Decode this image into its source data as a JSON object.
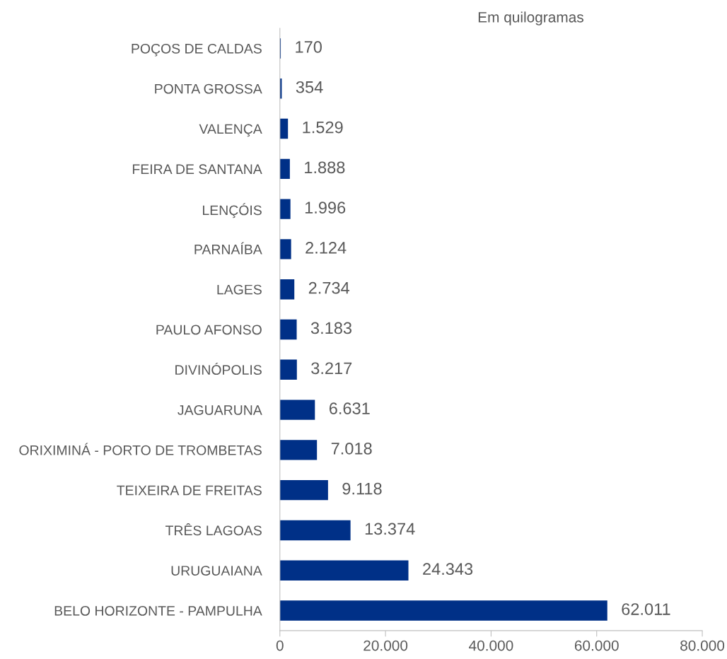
{
  "chart_data": {
    "type": "bar",
    "orientation": "horizontal",
    "categories": [
      "POÇOS DE CALDAS",
      "PONTA GROSSA",
      "VALENÇA",
      "FEIRA DE SANTANA",
      "LENÇÓIS",
      "PARNAÍBA",
      "LAGES",
      "PAULO AFONSO",
      "DIVINÓPOLIS",
      "JAGUARUNA",
      "ORIXIMINÁ - PORTO DE TROMBETAS",
      "TEIXEIRA DE FREITAS",
      "TRÊS LAGOAS",
      "URUGUAIANA",
      "BELO HORIZONTE - PAMPULHA"
    ],
    "values": [
      170,
      354,
      1529,
      1888,
      1996,
      2124,
      2734,
      3183,
      3217,
      6631,
      7018,
      9118,
      13374,
      24343,
      62011
    ],
    "value_labels": [
      "170",
      "354",
      "1.529",
      "1.888",
      "1.996",
      "2.124",
      "2.734",
      "3.183",
      "3.217",
      "6.631",
      "7.018",
      "9.118",
      "13.374",
      "24.343",
      "62.011"
    ],
    "color": "#003087",
    "xlim": [
      0,
      80000
    ],
    "xticks": [
      0,
      {
        "value": 20000,
        "label": "20.000"
      },
      {
        "value": 40000,
        "label": "40.000"
      },
      {
        "value": 60000,
        "label": "60.000"
      },
      {
        "value": 80000,
        "label": "80.000"
      }
    ],
    "annotations": [
      "Em quilogramas"
    ],
    "grid": false
  }
}
